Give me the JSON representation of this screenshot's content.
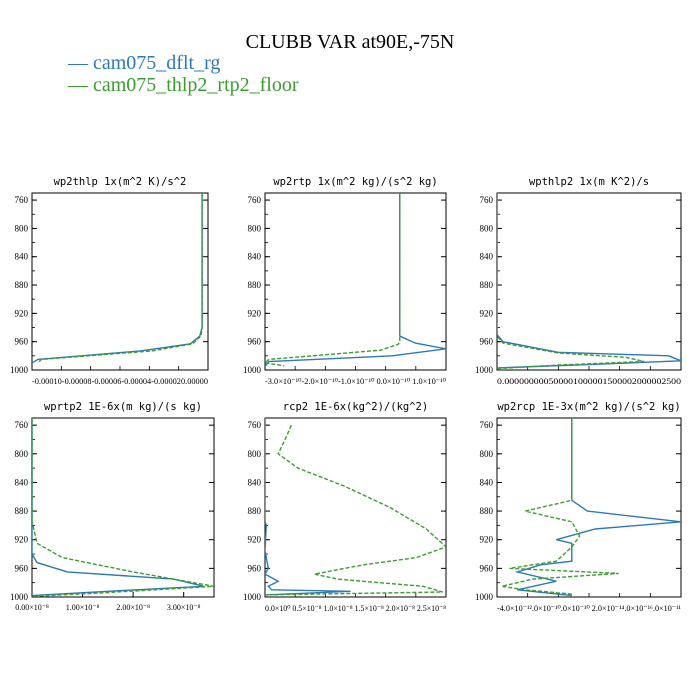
{
  "title": "CLUBB VAR at90E,-75N",
  "colors": {
    "cam075_dflt_rg": "#2f79b5",
    "cam075_thlp2_rtp2_floor": "#3c9d2f"
  },
  "legend": {
    "items": [
      {
        "marker": "—",
        "label": "cam075_dflt_rg",
        "color": "#2f79b5"
      },
      {
        "marker": "—",
        "label": "cam075_thlp2_rtp2_floor",
        "color": "#3c9d2f"
      }
    ]
  },
  "chart_data": [
    {
      "type": "line",
      "title": "wp2thlp   1x(m^2 K)/s^2",
      "xlim": [
        -0.000125,
        2.5e-05
      ],
      "ylim": [
        1000,
        750
      ],
      "yticks": [
        760,
        800,
        840,
        880,
        920,
        960,
        1000
      ],
      "ytick_labels": [
        "760",
        "800",
        "840",
        "880",
        "920",
        "960",
        "1000"
      ],
      "xtick_labels_text": "-0.00010-0.00008-0.00006-0.00004-0.000020.00000",
      "series": [
        {
          "name": "cam075_dflt_rg",
          "style": "solid",
          "points": [
            [
              2e-05,
              750
            ],
            [
              2e-05,
              940
            ],
            [
              1.8e-05,
              952
            ],
            [
              1e-05,
              963
            ],
            [
              -3.25e-05,
              973
            ],
            [
              -0.00012,
              985
            ],
            [
              -0.000125,
              990
            ]
          ]
        },
        {
          "name": "cam075_thlp2_rtp2_floor",
          "style": "dashed",
          "points": [
            [
              2e-05,
              750
            ],
            [
              2e-05,
              940
            ],
            [
              1.9e-05,
              952
            ],
            [
              1.2e-05,
              963
            ],
            [
              -2.25e-05,
              973
            ],
            [
              -0.000117,
              985
            ],
            [
              -0.00012,
              990
            ]
          ]
        }
      ]
    },
    {
      "type": "line",
      "title": "wp2rtp   1x(m^2 kg)/(s^2 kg)",
      "xlim": [
        -3.5e-10,
        1.2e-10
      ],
      "ylim": [
        1000,
        750
      ],
      "yticks": [
        760,
        800,
        840,
        880,
        920,
        960,
        1000
      ],
      "ytick_labels": [
        "760",
        "800",
        "840",
        "880",
        "920",
        "960",
        "1000"
      ],
      "xtick_labels_text": "-3.0×10⁻¹⁰-2.0×10⁻¹⁰-1.0×10⁻¹⁰ 0.0×10⁻¹⁰ 1.0×10⁻¹⁰",
      "series": [
        {
          "name": "cam075_dflt_rg",
          "style": "solid",
          "points": [
            [
              0.0,
              750
            ],
            [
              0.0,
              950
            ],
            [
              0.0,
              952
            ],
            [
              4e-11,
              962
            ],
            [
              1.2e-10,
              970
            ],
            [
              -2e-11,
              980
            ],
            [
              -3.4e-10,
              988
            ],
            [
              -3.5e-10,
              995
            ]
          ]
        },
        {
          "name": "cam075_thlp2_rtp2_floor",
          "style": "dashed",
          "points": [
            [
              0.0,
              750
            ],
            [
              0.0,
              960
            ],
            [
              -5e-12,
              964
            ],
            [
              -5e-11,
              972
            ],
            [
              -3.4e-10,
              985
            ],
            [
              -3.5e-10,
              990
            ],
            [
              -3e-10,
              994
            ]
          ]
        }
      ]
    },
    {
      "type": "line",
      "title": "wpthlp2   1x(m K^2)/s",
      "xlim": [
        0,
        0.0003
      ],
      "ylim": [
        1000,
        750
      ],
      "yticks": [
        760,
        800,
        840,
        880,
        920,
        960,
        1000
      ],
      "ytick_labels": [
        "760",
        "800",
        "840",
        "880",
        "920",
        "960",
        "1000"
      ],
      "xtick_labels_text": "0.000000000500001000001500002000002500",
      "series": [
        {
          "name": "cam075_dflt_rg",
          "style": "solid",
          "points": [
            [
              0.0,
              750
            ],
            [
              0.0,
              950
            ],
            [
              1e-05,
              960
            ],
            [
              0.0001,
              975
            ],
            [
              0.00028,
              980
            ],
            [
              0.0003,
              987
            ],
            [
              0.00016,
              992
            ],
            [
              0.0,
              997
            ]
          ]
        },
        {
          "name": "cam075_thlp2_rtp2_floor",
          "style": "dashed",
          "points": [
            [
              0.0,
              750
            ],
            [
              0.0,
              952
            ],
            [
              1e-05,
              962
            ],
            [
              0.0001,
              976
            ],
            [
              0.00021,
              982
            ],
            [
              0.00024,
              988
            ],
            [
              0.0001,
              993
            ],
            [
              0.0,
              998
            ]
          ]
        }
      ]
    },
    {
      "type": "line",
      "title": "wprtp2   1E-6x(m kg)/(s kg)",
      "xlim": [
        0,
        3.6e-08
      ],
      "ylim": [
        1000,
        750
      ],
      "yticks": [
        760,
        800,
        840,
        880,
        920,
        960,
        1000
      ],
      "ytick_labels": [
        "760",
        "800",
        "840",
        "880",
        "920",
        "960",
        "1000"
      ],
      "xtick_labels": [
        {
          "value": 0,
          "text": "0.00×10⁻⁸"
        },
        {
          "value": 1e-08,
          "text": "1.00×10⁻⁸"
        },
        {
          "value": 2e-08,
          "text": "2.00×10⁻⁸"
        },
        {
          "value": 3e-08,
          "text": "3.00×10⁻⁸"
        }
      ],
      "series": [
        {
          "name": "cam075_dflt_rg",
          "style": "solid",
          "points": [
            [
              0.0,
              750
            ],
            [
              0.0,
              940
            ],
            [
              1e-09,
              952
            ],
            [
              7e-09,
              965
            ],
            [
              2.8e-08,
              975
            ],
            [
              3.4e-08,
              985
            ],
            [
              1.5e-08,
              992
            ],
            [
              0.0,
              998
            ]
          ]
        },
        {
          "name": "cam075_thlp2_rtp2_floor",
          "style": "dashed",
          "points": [
            [
              0.0,
              750
            ],
            [
              0.0,
              895
            ],
            [
              1e-09,
              925
            ],
            [
              6e-09,
              945
            ],
            [
              2e-08,
              965
            ],
            [
              3.6e-08,
              985
            ],
            [
              1.2e-08,
              995
            ],
            [
              0.0,
              999
            ]
          ]
        }
      ]
    },
    {
      "type": "line",
      "title": "rcp2   1E-6x(kg^2)/(kg^2)",
      "xlim": [
        0,
        2.75e-08
      ],
      "ylim": [
        1000,
        750
      ],
      "yticks": [
        760,
        800,
        840,
        880,
        920,
        960,
        1000
      ],
      "ytick_labels": [
        "760",
        "800",
        "840",
        "880",
        "920",
        "960",
        "1000"
      ],
      "xtick_labels_text": "0.0×10⁰ 0.5×10⁻⁸ 1.0×10⁻⁸ 1.5×10⁻⁸ 2.0×10⁻⁸ 2.5×10⁻⁸",
      "series": [
        {
          "name": "cam075_dflt_rg",
          "style": "solid",
          "points": [
            [
              0.0,
              750
            ],
            [
              0.0,
              895
            ],
            [
              2e-10,
              900
            ],
            [
              0.0,
              935
            ],
            [
              5e-10,
              960
            ],
            [
              0.0,
              968
            ],
            [
              2e-09,
              978
            ],
            [
              5e-10,
              985
            ],
            [
              1e-09,
              990
            ],
            [
              1.3e-08,
              992
            ],
            [
              0.0,
              997
            ]
          ]
        },
        {
          "name": "cam075_thlp2_rtp2_floor",
          "style": "dashed",
          "points": [
            [
              4e-09,
              760
            ],
            [
              3.3e-09,
              775
            ],
            [
              2e-09,
              800
            ],
            [
              5e-09,
              820
            ],
            [
              1.2e-08,
              845
            ],
            [
              1.9e-08,
              875
            ],
            [
              2.45e-08,
              905
            ],
            [
              2.75e-08,
              930
            ],
            [
              2.3e-08,
              945
            ],
            [
              1.5e-08,
              955
            ],
            [
              7.5e-09,
              968
            ],
            [
              1.1e-08,
              975
            ],
            [
              2.4e-08,
              985
            ],
            [
              2.7e-08,
              993
            ],
            [
              0.0,
              997
            ]
          ]
        }
      ]
    },
    {
      "type": "line",
      "title": "wp2rcp   1E-3x(m^2 kg)/(s^2 kg)",
      "xlim": [
        -4.8e-11,
        7e-11
      ],
      "ylim": [
        1000,
        750
      ],
      "yticks": [
        760,
        800,
        840,
        880,
        920,
        960,
        1000
      ],
      "ytick_labels": [
        "760",
        "800",
        "840",
        "880",
        "920",
        "960",
        "1000"
      ],
      "xtick_labels_text": "-4.0×10⁻¹².0×10⁻¹⁰.0×10⁻¹⁰ 2.0×10⁻¹⁴.0×10⁻¹⁶.0×10⁻¹¹",
      "series": [
        {
          "name": "cam075_dflt_rg",
          "style": "solid",
          "points": [
            [
              0.0,
              750
            ],
            [
              0.0,
              865
            ],
            [
              1e-11,
              880
            ],
            [
              7e-11,
              895
            ],
            [
              1.5e-11,
              905
            ],
            [
              -1e-11,
              920
            ],
            [
              0.0,
              925
            ],
            [
              0.0,
              950
            ],
            [
              -2e-11,
              955
            ],
            [
              -3.5e-11,
              965
            ],
            [
              -1e-11,
              978
            ],
            [
              -3.5e-11,
              990
            ],
            [
              0.0,
              998
            ]
          ]
        },
        {
          "name": "cam075_thlp2_rtp2_floor",
          "style": "dashed",
          "points": [
            [
              0.0,
              750
            ],
            [
              0.0,
              865
            ],
            [
              -3e-11,
              880
            ],
            [
              0.0,
              895
            ],
            [
              5e-12,
              915
            ],
            [
              0.0,
              930
            ],
            [
              -1e-11,
              950
            ],
            [
              -4e-11,
              960
            ],
            [
              3e-11,
              967
            ],
            [
              -2.5e-11,
              975
            ],
            [
              -4.5e-11,
              985
            ],
            [
              -3e-11,
              990
            ],
            [
              0.0,
              996
            ]
          ]
        }
      ]
    }
  ]
}
